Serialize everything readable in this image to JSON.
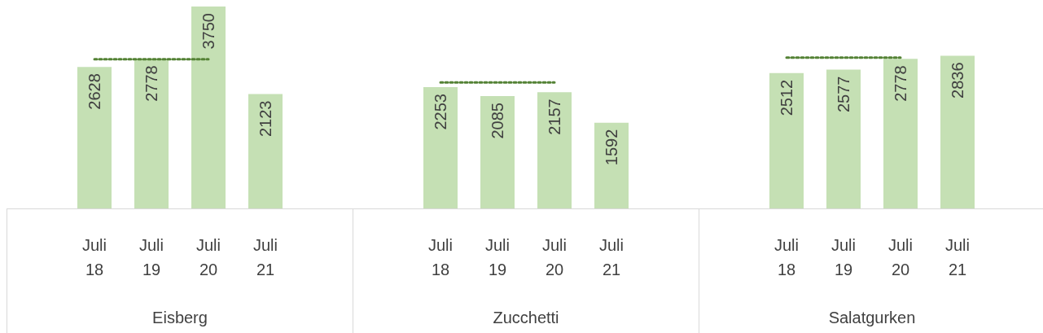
{
  "chart_data": [
    {
      "type": "bar",
      "xlabel": "Eisberg",
      "categories": [
        "Juli 18",
        "Juli 19",
        "Juli 20",
        "Juli 21"
      ],
      "tick_labels": "x",
      "series": [
        {
          "color": "#c5e0b4",
          "values": [
            2628,
            2778,
            3750,
            2123
          ],
          "value_labels": [
            "2628",
            "2778",
            "3750",
            "2123"
          ]
        },
        {
          "type": "line",
          "color": "#548235",
          "values": [
            2770,
            2770,
            2770,
            null
          ],
          "line_style": "dotted",
          "marker": "none"
        }
      ]
    },
    {
      "type": "bar",
      "xlabel": "Zucchetti",
      "categories": [
        "Juli 18",
        "Juli 19",
        "Juli 20",
        "Juli 21"
      ],
      "tick_labels": "x",
      "series": [
        {
          "color": "#c5e0b4",
          "values": [
            2253,
            2085,
            2157,
            1592
          ],
          "value_labels": [
            "2253",
            "2085",
            "2157",
            "1592"
          ]
        },
        {
          "type": "line",
          "color": "#548235",
          "values": [
            2340,
            2340,
            2340,
            null
          ],
          "line_style": "dotted",
          "marker": "none"
        }
      ]
    },
    {
      "type": "bar",
      "xlabel": "Salatgurken",
      "categories": [
        "Juli 18",
        "Juli 19",
        "Juli 20",
        "Juli 21"
      ],
      "tick_labels": "x",
      "series": [
        {
          "color": "#c5e0b4",
          "values": [
            2512,
            2577,
            2778,
            2836
          ],
          "value_labels": [
            "2512",
            "2577",
            "2778",
            "2836"
          ]
        },
        {
          "type": "line",
          "color": "#548235",
          "values": [
            2800,
            2800,
            2800,
            null
          ],
          "line_style": "dotted",
          "marker": "none"
        }
      ]
    }
  ]
}
